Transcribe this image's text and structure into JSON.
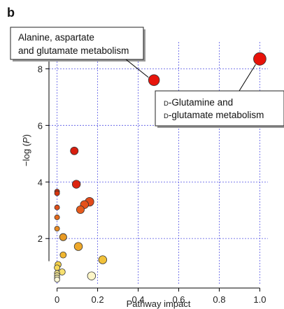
{
  "panel_label": "b",
  "chart_data": {
    "type": "scatter",
    "xlabel": "Pathway impact",
    "ylabel_prefix": "−log (",
    "ylabel_var": "P",
    "ylabel_suffix": ")",
    "xlim": [
      -0.04,
      1.04
    ],
    "ylim": [
      0.35,
      8.95
    ],
    "xticks": [
      0,
      0.2,
      0.4,
      0.6,
      0.8,
      1.0
    ],
    "xtick_labels": [
      "0",
      "0.2",
      "0.4",
      "0.6",
      "0.8",
      "1.0"
    ],
    "yticks": [
      2,
      4,
      6,
      8
    ],
    "ytick_labels": [
      "2",
      "4",
      "6",
      "8"
    ],
    "grid": true,
    "points": [
      {
        "x": 1.0,
        "y": 8.35,
        "size": 3,
        "color": "#e8120a"
      },
      {
        "x": 0.478,
        "y": 7.6,
        "size": 2.5,
        "color": "#e8150b"
      },
      {
        "x": 0.085,
        "y": 5.1,
        "size": 1.5,
        "color": "#d81e0e"
      },
      {
        "x": 0.095,
        "y": 3.92,
        "size": 1.6,
        "color": "#dc2410"
      },
      {
        "x": 0.16,
        "y": 3.3,
        "size": 1.8,
        "color": "#e24a1a"
      },
      {
        "x": 0.135,
        "y": 3.2,
        "size": 1.6,
        "color": "#e4511b"
      },
      {
        "x": 0.115,
        "y": 3.02,
        "size": 1.5,
        "color": "#e65a1c"
      },
      {
        "x": 0.0,
        "y": 3.66,
        "size": 0.6,
        "color": "#d6300f"
      },
      {
        "x": 0.0,
        "y": 3.6,
        "size": 0.6,
        "color": "#d8340f"
      },
      {
        "x": 0.0,
        "y": 3.1,
        "size": 0.6,
        "color": "#e0501a"
      },
      {
        "x": 0.0,
        "y": 2.75,
        "size": 0.6,
        "color": "#e46a1e"
      },
      {
        "x": 0.0,
        "y": 2.35,
        "size": 0.6,
        "color": "#e88a22"
      },
      {
        "x": 0.03,
        "y": 2.05,
        "size": 1.3,
        "color": "#e99a24"
      },
      {
        "x": 0.105,
        "y": 1.72,
        "size": 1.6,
        "color": "#eea82a"
      },
      {
        "x": 0.03,
        "y": 1.42,
        "size": 1.0,
        "color": "#f0b630"
      },
      {
        "x": 0.225,
        "y": 1.25,
        "size": 1.6,
        "color": "#f1c13a"
      },
      {
        "x": 0.005,
        "y": 1.08,
        "size": 1.0,
        "color": "#f4d048"
      },
      {
        "x": 0.0,
        "y": 0.97,
        "size": 0.8,
        "color": "#f5d85a"
      },
      {
        "x": 0.025,
        "y": 0.82,
        "size": 1.0,
        "color": "#f7e070"
      },
      {
        "x": 0.0,
        "y": 0.78,
        "size": 0.7,
        "color": "#f9e98c"
      },
      {
        "x": 0.0,
        "y": 0.7,
        "size": 0.7,
        "color": "#faee9c"
      },
      {
        "x": 0.0,
        "y": 0.62,
        "size": 0.7,
        "color": "#fbf2b0"
      },
      {
        "x": 0.17,
        "y": 0.68,
        "size": 1.6,
        "color": "#fdf6c8"
      },
      {
        "x": 0.0,
        "y": 0.55,
        "size": 0.7,
        "color": "#fdf8d6"
      }
    ],
    "annotations": [
      {
        "lines": [
          "Alanine, aspartate",
          "and glutamate metabolism"
        ],
        "point": 1
      },
      {
        "lines": [
          {
            "sc": "d",
            "text": "-Glutamine and"
          },
          {
            "sc": "d",
            "text": "-glutamate metabolism"
          }
        ],
        "point": 0
      }
    ]
  }
}
